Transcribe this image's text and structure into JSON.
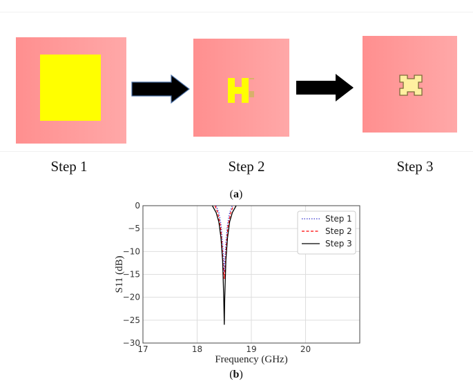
{
  "figure_a": {
    "steps": [
      {
        "label": "Step 1"
      },
      {
        "label": "Step 2"
      },
      {
        "label": "Step 3"
      }
    ],
    "sublabel": "a",
    "colors": {
      "substrate": "#ff9a9a",
      "patch": "#ffff00",
      "arrow": "#000000"
    }
  },
  "figure_b": {
    "sublabel": "b"
  },
  "chart_data": {
    "type": "line",
    "xlabel": "Frequency (GHz)",
    "ylabel": "S11 (dB)",
    "xlim": [
      17,
      21
    ],
    "ylim": [
      -30,
      0
    ],
    "xticks": [
      17,
      18,
      19,
      20
    ],
    "yticks": [
      0,
      -5,
      -10,
      -15,
      -20,
      -25,
      -30
    ],
    "grid": true,
    "legend_position": "top-right",
    "series": [
      {
        "name": "Step 1",
        "style": "dotted",
        "color": "#3333cc",
        "x": [
          18.35,
          18.4,
          18.44,
          18.47,
          18.49,
          18.5,
          18.51,
          18.53,
          18.56,
          18.6,
          18.65
        ],
        "y": [
          0,
          -1.5,
          -4,
          -8,
          -12,
          -14.5,
          -12,
          -8,
          -4,
          -1.5,
          0
        ]
      },
      {
        "name": "Step 2",
        "style": "dashed",
        "color": "#ff0000",
        "x": [
          18.33,
          18.38,
          18.43,
          18.46,
          18.48,
          18.5,
          18.52,
          18.54,
          18.57,
          18.62,
          18.67
        ],
        "y": [
          0,
          -1.5,
          -4.5,
          -8.5,
          -13,
          -16,
          -13,
          -8.5,
          -4.5,
          -1.5,
          0
        ]
      },
      {
        "name": "Step 3",
        "style": "solid",
        "color": "#000000",
        "x": [
          18.28,
          18.35,
          18.4,
          18.44,
          18.47,
          18.49,
          18.5,
          18.51,
          18.53,
          18.56,
          18.6,
          18.65,
          18.72
        ],
        "y": [
          0,
          -1.5,
          -3.5,
          -7,
          -12,
          -20,
          -26,
          -20,
          -12,
          -7,
          -3.5,
          -1.5,
          0
        ]
      }
    ]
  }
}
